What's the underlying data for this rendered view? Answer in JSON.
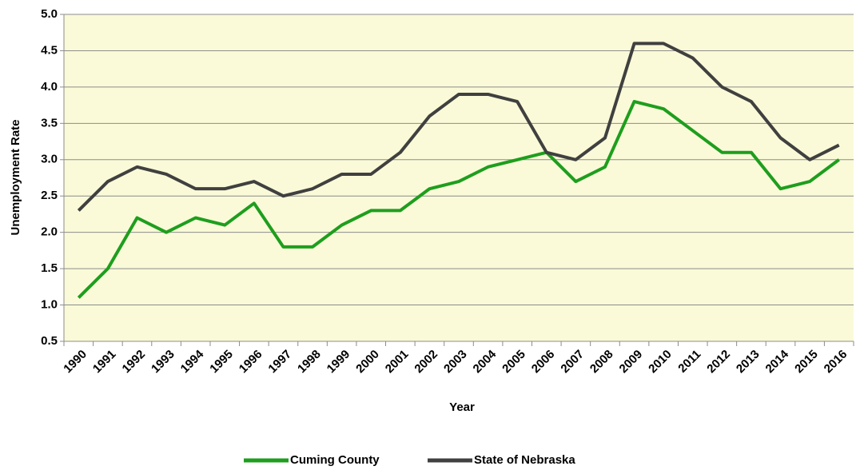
{
  "chart_data": {
    "type": "line",
    "x_label": "Year",
    "y_label": "Unemployment Rate",
    "categories": [
      "1990",
      "1991",
      "1992",
      "1993",
      "1994",
      "1995",
      "1996",
      "1997",
      "1998",
      "1999",
      "2000",
      "2001",
      "2002",
      "2003",
      "2004",
      "2005",
      "2006",
      "2007",
      "2008",
      "2009",
      "2010",
      "2011",
      "2012",
      "2013",
      "2014",
      "2015",
      "2016"
    ],
    "series": [
      {
        "name": "Cuming County",
        "color": "#1e9e1e",
        "values": [
          1.1,
          1.5,
          2.2,
          2.0,
          2.2,
          2.1,
          2.4,
          1.8,
          1.8,
          2.1,
          2.3,
          2.3,
          2.6,
          2.7,
          2.9,
          3.0,
          3.1,
          2.7,
          2.9,
          3.8,
          3.7,
          3.4,
          3.1,
          3.1,
          2.6,
          2.7,
          3.0
        ]
      },
      {
        "name": "State of Nebraska",
        "color": "#404040",
        "values": [
          2.3,
          2.7,
          2.9,
          2.8,
          2.6,
          2.6,
          2.7,
          2.5,
          2.6,
          2.8,
          2.8,
          3.1,
          3.6,
          3.9,
          3.9,
          3.8,
          3.1,
          3.0,
          3.3,
          4.6,
          4.6,
          4.4,
          4.0,
          3.8,
          3.3,
          3.0,
          3.2
        ]
      }
    ],
    "ylim": [
      0.5,
      5.0
    ],
    "yticks": [
      0.5,
      {
        "value": 1,
        "label": "1.0"
      },
      1.5,
      {
        "value": 2,
        "label": "2.0"
      },
      2.5,
      {
        "value": 3,
        "label": "3.0"
      },
      3.5,
      {
        "value": 4,
        "label": "4.0"
      },
      4.5,
      {
        "value": 5,
        "label": "5.0"
      }
    ],
    "grid": true,
    "legend": "bottom",
    "background": "#fafad8"
  }
}
